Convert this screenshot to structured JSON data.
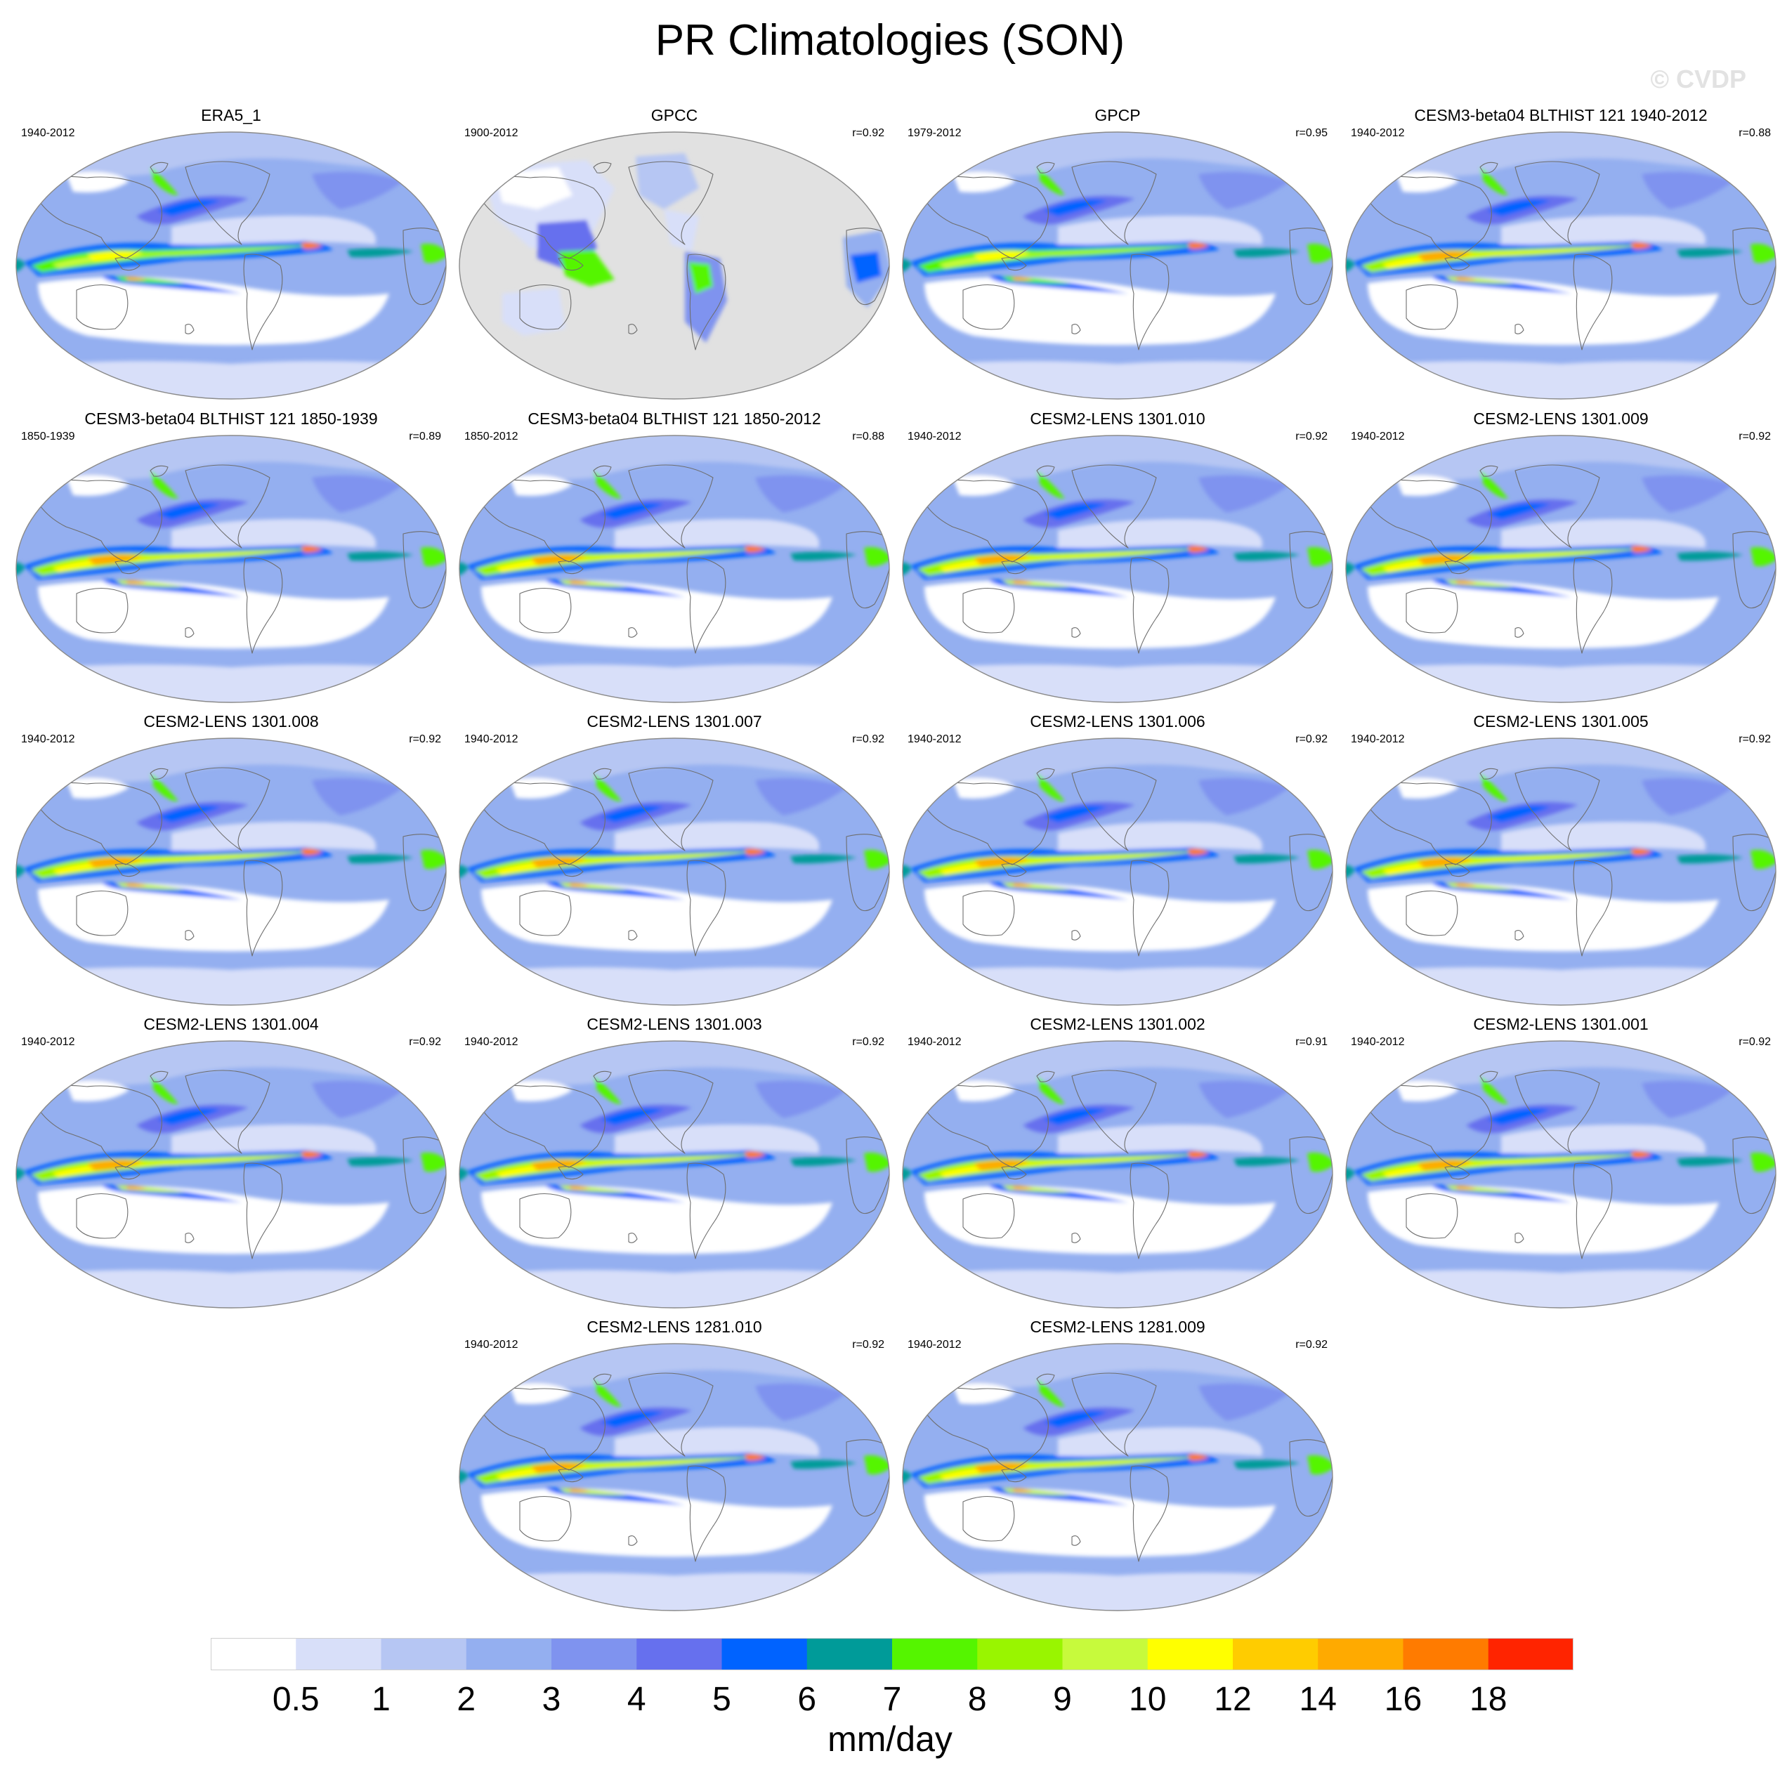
{
  "title": "PR Climatologies (SON)",
  "watermark": "© CVDP",
  "units": "mm/day",
  "colorbar": {
    "colors": [
      "#ffffff",
      "#d8dff9",
      "#b6c6f3",
      "#94aff0",
      "#7f93ef",
      "#6670ee",
      "#0063ff",
      "#009b99",
      "#55f500",
      "#99f500",
      "#c7fa3c",
      "#ffff00",
      "#ffcc00",
      "#ffaa00",
      "#ff7b00",
      "#ff2400"
    ],
    "labels": [
      "0.5",
      "1",
      "2",
      "3",
      "4",
      "5",
      "6",
      "7",
      "8",
      "9",
      "10",
      "12",
      "14",
      "16",
      "18"
    ]
  },
  "panels": [
    {
      "title": "ERA5_1",
      "period": "1940-2012",
      "r": "",
      "style": "obs"
    },
    {
      "title": "GPCC",
      "period": "1900-2012",
      "r": "r=0.92",
      "style": "land"
    },
    {
      "title": "GPCP",
      "period": "1979-2012",
      "r": "r=0.95",
      "style": "obs"
    },
    {
      "title": "CESM3-beta04 BLTHIST 121 1940-2012",
      "period": "1940-2012",
      "r": "r=0.88",
      "style": "model"
    },
    {
      "title": "CESM3-beta04 BLTHIST 121 1850-1939",
      "period": "1850-1939",
      "r": "r=0.89",
      "style": "model"
    },
    {
      "title": "CESM3-beta04 BLTHIST 121 1850-2012",
      "period": "1850-2012",
      "r": "r=0.88",
      "style": "model"
    },
    {
      "title": "CESM2-LENS 1301.010",
      "period": "1940-2012",
      "r": "r=0.92",
      "style": "model"
    },
    {
      "title": "CESM2-LENS 1301.009",
      "period": "1940-2012",
      "r": "r=0.92",
      "style": "model"
    },
    {
      "title": "CESM2-LENS 1301.008",
      "period": "1940-2012",
      "r": "r=0.92",
      "style": "model"
    },
    {
      "title": "CESM2-LENS 1301.007",
      "period": "1940-2012",
      "r": "r=0.92",
      "style": "model"
    },
    {
      "title": "CESM2-LENS 1301.006",
      "period": "1940-2012",
      "r": "r=0.92",
      "style": "model"
    },
    {
      "title": "CESM2-LENS 1301.005",
      "period": "1940-2012",
      "r": "r=0.92",
      "style": "model"
    },
    {
      "title": "CESM2-LENS 1301.004",
      "period": "1940-2012",
      "r": "r=0.92",
      "style": "model"
    },
    {
      "title": "CESM2-LENS 1301.003",
      "period": "1940-2012",
      "r": "r=0.92",
      "style": "model"
    },
    {
      "title": "CESM2-LENS 1301.002",
      "period": "1940-2012",
      "r": "r=0.91",
      "style": "model"
    },
    {
      "title": "CESM2-LENS 1301.001",
      "period": "1940-2012",
      "r": "r=0.92",
      "style": "model"
    },
    {
      "title": "CESM2-LENS 1281.010",
      "period": "1940-2012",
      "r": "r=0.92",
      "style": "model"
    },
    {
      "title": "CESM2-LENS 1281.009",
      "period": "1940-2012",
      "r": "r=0.92",
      "style": "model"
    }
  ]
}
